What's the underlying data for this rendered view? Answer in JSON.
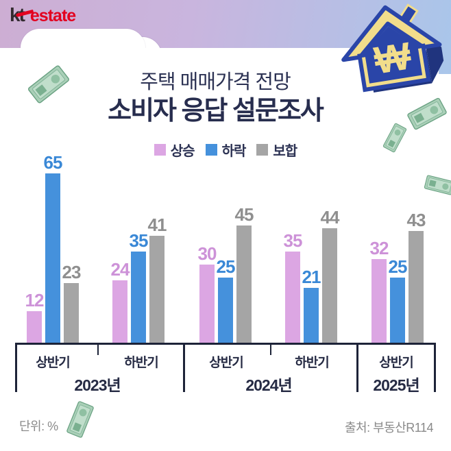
{
  "brand": {
    "kt": "kt",
    "estate": "estate"
  },
  "title": {
    "line1": "주택 매매가격 전망",
    "line2": "소비자 응답 설문조사"
  },
  "legend": [
    {
      "label": "상승",
      "color": "#dca6e3"
    },
    {
      "label": "하락",
      "color": "#4591dc"
    },
    {
      "label": "보합",
      "color": "#a5a5a5"
    }
  ],
  "chart_data": {
    "type": "bar",
    "title": "주택 매매가격 전망 소비자 응답 설문조사",
    "unit": "%",
    "categories": [
      "2023년 상반기",
      "2023년 하반기",
      "2024년 상반기",
      "2024년 하반기",
      "2025년 상반기"
    ],
    "series": [
      {
        "name": "상승",
        "color": "#dca6e3",
        "label_color": "#cd92d8",
        "values": [
          12,
          24,
          30,
          35,
          32
        ]
      },
      {
        "name": "하락",
        "color": "#4591dc",
        "label_color": "#3a88d6",
        "values": [
          65,
          35,
          25,
          21,
          25
        ]
      },
      {
        "name": "보합",
        "color": "#a5a5a5",
        "label_color": "#8f8f8f",
        "values": [
          23,
          41,
          45,
          44,
          43
        ]
      }
    ],
    "x_axis": {
      "half_labels": [
        "상반기",
        "하반기",
        "상반기",
        "하반기",
        "상반기"
      ],
      "year_labels": [
        "2023년",
        "2024년",
        "2025년"
      ]
    },
    "ylim": [
      0,
      70
    ],
    "grid": false,
    "legend_position": "top",
    "axis_color": "#1d2338"
  },
  "footer": {
    "unit_label": "단위: %",
    "source_label": "출처: 부동산R114"
  },
  "icons": {
    "house_icon": "house-with-won-symbol",
    "won_symbol": "₩",
    "banknote_icon": "green-banknote"
  },
  "colors": {
    "header_gradient_left": "#cdaed3",
    "header_gradient_right": "#a9c6ea",
    "title_navy": "#272d4e",
    "house_blue": "#2a45a8",
    "house_yellow": "#f2dd8b",
    "kt_red": "#e3001f"
  }
}
